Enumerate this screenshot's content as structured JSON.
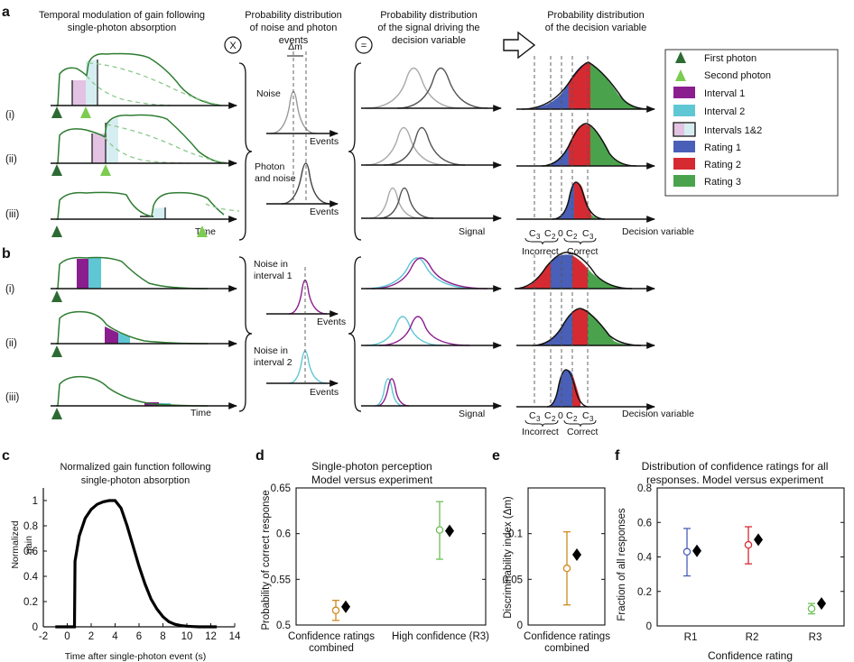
{
  "colors": {
    "first_photon": "#2e6b34",
    "second_photon": "#7dcc52",
    "interval1": "#8b1e8f",
    "interval2": "#5fc7d4",
    "interval12": "#e3c2e3",
    "rating1": "#4a5fb7",
    "rating2": "#d62a32",
    "rating3": "#4aa34c",
    "model_marker": "#000000"
  },
  "panels": {
    "a": "a",
    "b": "b",
    "c": "c",
    "d": "d",
    "e": "e",
    "f": "f"
  },
  "headers": {
    "h1_1": "Temporal modulation of gain following",
    "h1_2": "single-photon absorption",
    "h2_1": "Probability distribution",
    "h2_2": "of noise and photon",
    "h2_3": "events",
    "h3_1": "Probability distribution",
    "h3_2": "of the signal driving the",
    "h3_3": "decision variable",
    "h4_1": "Probability distribution",
    "h4_2": "of the decision variable",
    "times": "X",
    "equals": "="
  },
  "row_labels": {
    "a_i": "(i)",
    "a_ii": "(ii)",
    "a_iii": "(iii)",
    "b_i": "(i)",
    "b_ii": "(ii)",
    "b_iii": "(iii)"
  },
  "axis_words": {
    "time": "Time",
    "events": "Events",
    "signal": "Signal",
    "decision_variable": "Decision variable",
    "delta_m": "Δm"
  },
  "dist_labels": {
    "noise": "Noise",
    "photon_and_noise_1": "Photon",
    "photon_and_noise_2": "and noise",
    "noise_int1_1": "Noise in",
    "noise_int1_2": "interval 1",
    "noise_int2_1": "Noise in",
    "noise_int2_2": "interval 2"
  },
  "criteria": {
    "c3": "C",
    "c2": "C",
    "sub3": "3",
    "sub2": "2",
    "zero": "0",
    "incorrect": "Incorrect",
    "correct": "Correct"
  },
  "legend": [
    "First photon",
    "Second photon",
    "Interval 1",
    "Interval 2",
    "Intervals 1&2",
    "Rating 1",
    "Rating 2",
    "Rating 3"
  ],
  "panel_c": {
    "title1": "Normalized gain function following",
    "title2": "single-photon absorption",
    "ylabel1": "Normalized",
    "ylabel2": "gain",
    "xlabel": "Time after single-photon event (s)"
  },
  "panel_d": {
    "title1": "Single-photon perception",
    "title2": "Model versus experiment",
    "ylabel": "Probability of correct response",
    "xtick1a": "Confidence ratings",
    "xtick1b": "combined",
    "xtick2": "High confidence (R3)"
  },
  "panel_e": {
    "ylabel": "Discriminability index (Δm)",
    "xtick_a": "Confidence ratings",
    "xtick_b": "combined"
  },
  "panel_f": {
    "title1": "Distribution of confidence ratings for all",
    "title2": "responses. Model versus experiment",
    "ylabel": "Fraction of all responses",
    "xlabel": "Confidence rating"
  },
  "chart_data": [
    {
      "id": "c",
      "type": "line",
      "title": "Normalized gain function following single-photon absorption",
      "xlabel": "Time after single-photon event (s)",
      "ylabel": "Normalized gain",
      "xlim": [
        -2,
        14
      ],
      "ylim": [
        0,
        1.1
      ],
      "xticks": [
        "-2",
        "0",
        "2",
        "4",
        "6",
        "8",
        "10",
        "12",
        "14"
      ],
      "yticks": [
        "0",
        "0.2",
        "0.4",
        "0.6",
        "0.8",
        "1"
      ],
      "x": [
        -1,
        0.6,
        0.65,
        1,
        1.5,
        2,
        2.5,
        3,
        3.5,
        4,
        4.5,
        5,
        5.5,
        6,
        6.5,
        7,
        7.5,
        8,
        8.5,
        9,
        9.5,
        10,
        10.5,
        11,
        12,
        12.5
      ],
      "y": [
        0,
        0,
        0.52,
        0.72,
        0.86,
        0.93,
        0.97,
        0.99,
        1.0,
        1.0,
        0.94,
        0.8,
        0.64,
        0.48,
        0.34,
        0.22,
        0.14,
        0.08,
        0.04,
        0.02,
        0.01,
        0.005,
        0.002,
        0,
        0,
        0
      ]
    },
    {
      "id": "d",
      "type": "scatter",
      "title": "Single-photon perception Model versus experiment",
      "ylabel": "Probability of correct response",
      "ylim": [
        0.5,
        0.65
      ],
      "yticks": [
        "0.5",
        "0.55",
        "0.6",
        "0.65"
      ],
      "categories": [
        "Confidence ratings combined",
        "High confidence (R3)"
      ],
      "experiment": [
        0.516,
        0.604
      ],
      "err_low": [
        0.505,
        0.572
      ],
      "err_high": [
        0.527,
        0.635
      ],
      "model": [
        0.52,
        0.603
      ],
      "exp_colors": [
        "#d08a1e",
        "#6cbf57"
      ]
    },
    {
      "id": "e",
      "type": "scatter",
      "ylabel": "Discriminability index (Δm)",
      "ylim": [
        0,
        0.15
      ],
      "yticks": [
        "0",
        "0.05",
        "0.1"
      ],
      "categories": [
        "Confidence ratings combined"
      ],
      "experiment": [
        0.062
      ],
      "err_low": [
        0.022
      ],
      "err_high": [
        0.102
      ],
      "model": [
        0.077
      ],
      "exp_colors": [
        "#d08a1e"
      ]
    },
    {
      "id": "f",
      "type": "scatter",
      "title": "Distribution of confidence ratings for all responses. Model versus experiment",
      "xlabel": "Confidence rating",
      "ylabel": "Fraction of all responses",
      "ylim": [
        0,
        0.8
      ],
      "yticks": [
        "0",
        "0.2",
        "0.4",
        "0.6",
        "0.8"
      ],
      "categories": [
        "R1",
        "R2",
        "R3"
      ],
      "experiment": [
        0.43,
        0.47,
        0.1
      ],
      "err_low": [
        0.29,
        0.36,
        0.07
      ],
      "err_high": [
        0.565,
        0.575,
        0.13
      ],
      "model": [
        0.435,
        0.5,
        0.13
      ],
      "exp_colors": [
        "#4a5fb7",
        "#d62a32",
        "#6cbf57"
      ]
    }
  ]
}
